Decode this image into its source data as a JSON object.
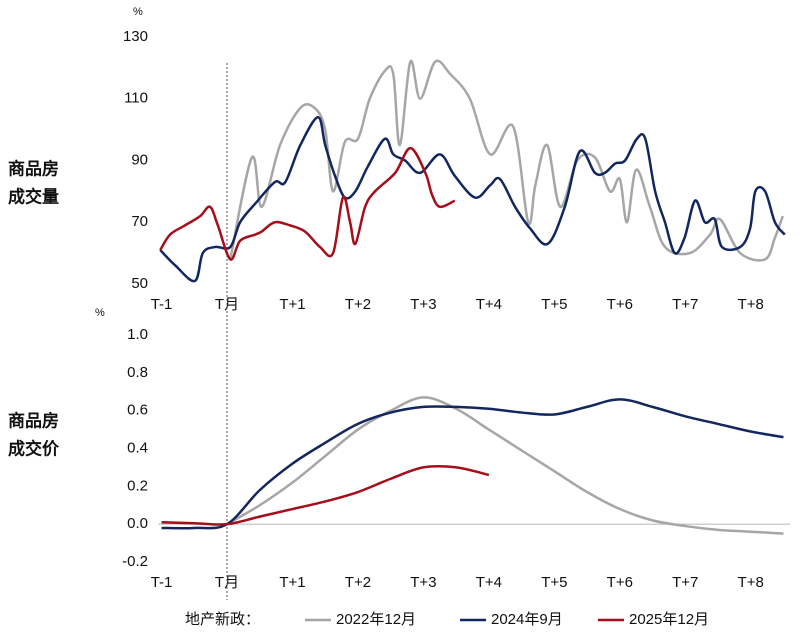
{
  "chart_data": [
    {
      "type": "line",
      "title": [
        "商品房",
        "成交量"
      ],
      "unit": "%",
      "xlim": [
        -1.1,
        8.6
      ],
      "ylim": [
        50,
        130
      ],
      "yticks": [
        50,
        70,
        90,
        110,
        130
      ],
      "vline": 0,
      "xticks": [
        {
          "value": -1,
          "label": "T-1"
        },
        {
          "value": 0,
          "label": "T月"
        },
        {
          "value": 1,
          "label": "T+1"
        },
        {
          "value": 2,
          "label": "T+2"
        },
        {
          "value": 3,
          "label": "T+3"
        },
        {
          "value": 4,
          "label": "T+4"
        },
        {
          "value": 5,
          "label": "T+5"
        },
        {
          "value": 6,
          "label": "T+6"
        },
        {
          "value": 7,
          "label": "T+7"
        },
        {
          "value": 8,
          "label": "T+8"
        }
      ],
      "series": [
        {
          "name": "2022年12月",
          "color": "#a6a6a6",
          "x": [
            0.05,
            0.38,
            0.53,
            0.81,
            1.12,
            1.34,
            1.5,
            1.62,
            1.8,
            2.0,
            2.18,
            2.41,
            2.54,
            2.64,
            2.8,
            2.95,
            3.18,
            3.41,
            3.71,
            4.02,
            4.37,
            4.6,
            4.71,
            4.89,
            5.09,
            5.35,
            5.62,
            5.85,
            6.0,
            6.11,
            6.25,
            6.46,
            6.69,
            7.07,
            7.38,
            7.53,
            7.84,
            8.22,
            8.37,
            8.49
          ],
          "values": [
            58,
            91,
            75,
            95,
            107,
            107,
            100,
            80,
            96,
            97,
            110,
            119,
            118,
            95,
            122,
            110,
            122,
            118,
            110,
            92,
            101,
            70,
            82,
            95,
            75,
            90,
            91,
            80,
            84,
            70,
            87,
            75,
            62,
            60,
            66,
            71,
            60,
            58,
            65,
            72
          ]
        },
        {
          "name": "2024年9月",
          "color": "#12275e",
          "x": [
            -1.02,
            -0.79,
            -0.49,
            -0.37,
            -0.18,
            0.05,
            0.2,
            0.43,
            0.73,
            0.89,
            1.12,
            1.39,
            1.5,
            1.65,
            1.8,
            1.96,
            2.15,
            2.41,
            2.54,
            2.72,
            2.95,
            3.25,
            3.48,
            3.79,
            4.02,
            4.17,
            4.4,
            4.63,
            4.9,
            5.16,
            5.39,
            5.62,
            5.77,
            5.93,
            6.08,
            6.26,
            6.39,
            6.54,
            6.69,
            6.84,
            6.99,
            7.15,
            7.3,
            7.45,
            7.56,
            7.84,
            7.99,
            8.07,
            8.22,
            8.37,
            8.52
          ],
          "values": [
            61,
            56,
            51,
            60,
            62,
            62,
            70,
            76,
            83,
            83,
            95,
            104,
            95,
            85,
            78,
            80,
            88,
            97,
            92,
            90,
            86,
            92,
            85,
            78,
            82,
            84,
            75,
            68,
            63,
            75,
            93,
            86,
            86,
            89,
            90,
            97,
            97,
            80,
            70,
            60,
            65,
            77,
            70,
            71,
            62,
            62,
            68,
            80,
            80,
            70,
            66
          ]
        },
        {
          "name": "2025年12月",
          "color": "#a50f1a",
          "x": [
            -1.02,
            -0.87,
            -0.64,
            -0.41,
            -0.26,
            -0.14,
            0.05,
            0.2,
            0.43,
            0.53,
            0.73,
            0.96,
            1.19,
            1.42,
            1.62,
            1.77,
            1.88,
            1.96,
            2.11,
            2.26,
            2.57,
            2.8,
            3.03,
            3.13,
            3.25,
            3.48
          ],
          "values": [
            61,
            66,
            69,
            72,
            75,
            69,
            58,
            64,
            66,
            67,
            70,
            69,
            67,
            62,
            60,
            78,
            70,
            63,
            75,
            80,
            86,
            94,
            86,
            79,
            75,
            77
          ]
        }
      ]
    },
    {
      "type": "line",
      "title": [
        "商品房",
        "成交价"
      ],
      "unit": "%",
      "xlim": [
        -1.1,
        8.6
      ],
      "ylim": [
        -0.2,
        1.0
      ],
      "vline": 0,
      "hline": 0,
      "yticks": [
        -0.2,
        {
          "value": 0,
          "label": "0.0"
        },
        0.2,
        0.4,
        0.6,
        0.8,
        {
          "value": 1,
          "label": "1.0"
        }
      ],
      "xticks": [
        {
          "value": -1,
          "label": "T-1"
        },
        {
          "value": 0,
          "label": "T月"
        },
        {
          "value": 1,
          "label": "T+1"
        },
        {
          "value": 2,
          "label": "T+2"
        },
        {
          "value": 3,
          "label": "T+3"
        },
        {
          "value": 4,
          "label": "T+4"
        },
        {
          "value": 5,
          "label": "T+5"
        },
        {
          "value": 6,
          "label": "T+6"
        },
        {
          "value": 7,
          "label": "T+7"
        },
        {
          "value": 8,
          "label": "T+8"
        }
      ],
      "series": [
        {
          "color": "#a6a6a6",
          "x": [
            0,
            0.5,
            1,
            1.5,
            2,
            2.5,
            3,
            3.5,
            4,
            4.5,
            5,
            5.5,
            6,
            6.5,
            7,
            7.5,
            8,
            8.5
          ],
          "values": [
            0,
            0.1,
            0.22,
            0.36,
            0.5,
            0.6,
            0.67,
            0.61,
            0.5,
            0.39,
            0.28,
            0.17,
            0.08,
            0.02,
            -0.01,
            -0.03,
            -0.04,
            -0.05
          ]
        },
        {
          "color": "#12275e",
          "x": [
            -1,
            -0.5,
            0,
            0.5,
            1,
            1.5,
            2,
            2.5,
            3,
            3.5,
            4,
            4.5,
            5,
            5.5,
            6,
            6.5,
            7,
            7.5,
            8,
            8.5
          ],
          "values": [
            -0.02,
            -0.02,
            0,
            0.18,
            0.32,
            0.43,
            0.53,
            0.59,
            0.62,
            0.62,
            0.61,
            0.59,
            0.58,
            0.62,
            0.66,
            0.62,
            0.57,
            0.53,
            0.49,
            0.46
          ]
        },
        {
          "color": "#a50f1a",
          "x": [
            -1,
            -0.5,
            0,
            0.5,
            1,
            1.5,
            2,
            2.5,
            3,
            3.5,
            4
          ],
          "values": [
            0.01,
            0.005,
            0,
            0.04,
            0.08,
            0.12,
            0.17,
            0.24,
            0.3,
            0.3,
            0.26
          ]
        }
      ]
    }
  ],
  "legend": {
    "title": "地产新政："
  }
}
